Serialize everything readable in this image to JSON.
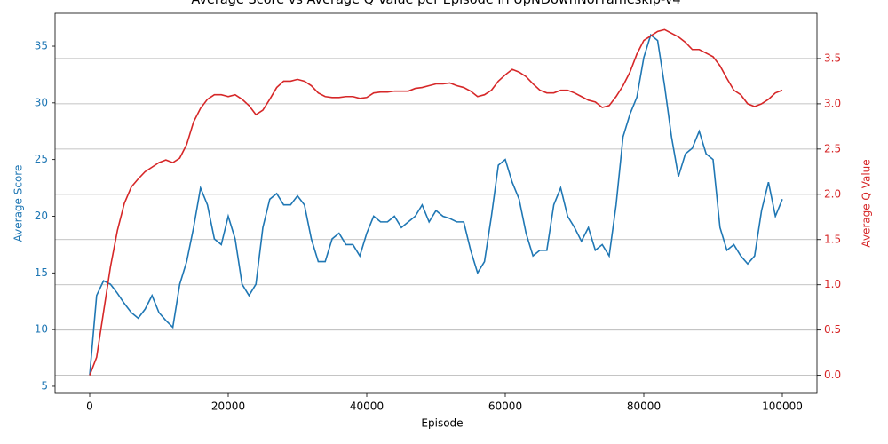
{
  "chart_data": {
    "type": "line",
    "title": "Average Score vs Average Q Value per Episode in UpNDownNoFrameskip-v4",
    "x_label": "Episode",
    "y_label": "Average Score",
    "y2_label": "Average Q Value",
    "x": [
      0,
      1000,
      2000,
      3000,
      4000,
      5000,
      6000,
      7000,
      8000,
      9000,
      10000,
      11000,
      12000,
      13000,
      14000,
      15000,
      16000,
      17000,
      18000,
      19000,
      20000,
      21000,
      22000,
      23000,
      24000,
      25000,
      26000,
      27000,
      28000,
      29000,
      30000,
      31000,
      32000,
      33000,
      34000,
      35000,
      36000,
      37000,
      38000,
      39000,
      40000,
      41000,
      42000,
      43000,
      44000,
      45000,
      46000,
      47000,
      48000,
      49000,
      50000,
      51000,
      52000,
      53000,
      54000,
      55000,
      56000,
      57000,
      58000,
      59000,
      60000,
      61000,
      62000,
      63000,
      64000,
      65000,
      66000,
      67000,
      68000,
      69000,
      70000,
      71000,
      72000,
      73000,
      74000,
      75000,
      76000,
      77000,
      78000,
      79000,
      80000,
      81000,
      82000,
      83000,
      84000,
      85000,
      86000,
      87000,
      88000,
      89000,
      90000,
      91000,
      92000,
      93000,
      94000,
      95000,
      96000,
      97000,
      98000,
      99000,
      100000
    ],
    "series": [
      {
        "name": "Average Score",
        "color": "#1f77b4",
        "axis": "y",
        "values": [
          6,
          13,
          14.3,
          14,
          13.2,
          12.3,
          11.5,
          11,
          11.8,
          13,
          11.5,
          10.8,
          10.2,
          14,
          16,
          19,
          22.5,
          21,
          18,
          17.5,
          20,
          18,
          14,
          13,
          14,
          19,
          21.5,
          22,
          21,
          21,
          21.8,
          21,
          18,
          16,
          16,
          18,
          18.5,
          17.5,
          17.5,
          16.5,
          18.5,
          20,
          19.5,
          19.5,
          20,
          19,
          19.5,
          20,
          21,
          19.5,
          20.5,
          20,
          19.8,
          19.5,
          19.5,
          17,
          15,
          16,
          20,
          24.5,
          25,
          23,
          21.5,
          18.5,
          16.5,
          17,
          17,
          21,
          22.5,
          20,
          19,
          17.8,
          19,
          17,
          17.5,
          16.5,
          21,
          27,
          29,
          30.5,
          34,
          36,
          35.5,
          31.5,
          27,
          23.5,
          25.5,
          26,
          27.5,
          25.5,
          25,
          19,
          17,
          17.5,
          16.5,
          15.8,
          16.5,
          20.5,
          23,
          20,
          21.5
        ]
      },
      {
        "name": "Average Q Value",
        "color": "#d62728",
        "axis": "y2",
        "values": [
          0,
          0.2,
          0.7,
          1.2,
          1.6,
          1.9,
          2.08,
          2.17,
          2.25,
          2.3,
          2.35,
          2.38,
          2.35,
          2.4,
          2.55,
          2.8,
          2.95,
          3.05,
          3.1,
          3.1,
          3.08,
          3.1,
          3.05,
          2.98,
          2.88,
          2.93,
          3.05,
          3.18,
          3.25,
          3.25,
          3.27,
          3.25,
          3.2,
          3.12,
          3.08,
          3.07,
          3.07,
          3.08,
          3.08,
          3.06,
          3.07,
          3.12,
          3.13,
          3.13,
          3.14,
          3.14,
          3.14,
          3.17,
          3.18,
          3.2,
          3.22,
          3.22,
          3.23,
          3.2,
          3.18,
          3.14,
          3.08,
          3.1,
          3.15,
          3.25,
          3.32,
          3.38,
          3.35,
          3.3,
          3.22,
          3.15,
          3.12,
          3.12,
          3.15,
          3.15,
          3.12,
          3.08,
          3.04,
          3.02,
          2.96,
          2.98,
          3.08,
          3.2,
          3.35,
          3.55,
          3.7,
          3.75,
          3.8,
          3.82,
          3.78,
          3.74,
          3.68,
          3.6,
          3.6,
          3.56,
          3.52,
          3.42,
          3.28,
          3.15,
          3.1,
          3.0,
          2.97,
          3.0,
          3.05,
          3.12,
          3.15
        ]
      }
    ],
    "xlim": [
      -5000,
      105000
    ],
    "xticks": [
      0,
      20000,
      40000,
      60000,
      80000,
      100000
    ],
    "ylim": [
      4.37,
      37.9
    ],
    "yticks": [
      5,
      10,
      15,
      20,
      25,
      30,
      35
    ],
    "y2lim": [
      -0.2,
      4.0
    ],
    "y2ticks": [
      {
        "value": 0,
        "label": "0.0"
      },
      0.5,
      {
        "value": 1,
        "label": "1.0"
      },
      1.5,
      {
        "value": 2,
        "label": "2.0"
      },
      2.5,
      {
        "value": 3,
        "label": "3.0"
      },
      3.5
    ],
    "grid": "y2"
  }
}
